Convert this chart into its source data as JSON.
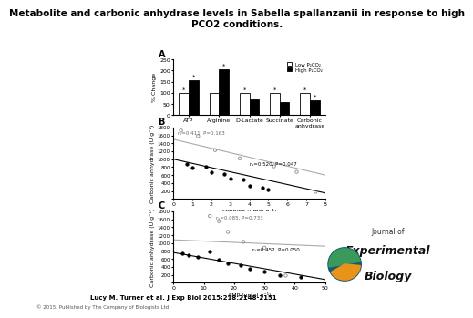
{
  "title": "Metabolite and carbonic anhydrase levels in Sabella spallanzanii in response to high\nPCO2 conditions.",
  "title_fontsize": 7.5,
  "panel_A": {
    "label": "A",
    "categories": [
      "ATP",
      "Arginine",
      "D-Lactate",
      "Succinate",
      "Carbonic\nanhydrase"
    ],
    "low_pco2": [
      100,
      100,
      100,
      100,
      100
    ],
    "high_pco2": [
      155,
      205,
      70,
      60,
      65
    ],
    "ylabel": "% Change",
    "ylim": [
      0,
      250
    ],
    "yticks": [
      0,
      50,
      100,
      150,
      200,
      250
    ],
    "legend_low": "Low P₂CO₂",
    "legend_high": "High P₂CO₂",
    "bar_color_low": "white",
    "bar_color_high": "black",
    "bar_edgecolor": "black",
    "asterisks_low": [
      "*",
      "",
      "*",
      "*",
      "*"
    ],
    "asterisks_high": [
      "*",
      "*",
      "",
      "",
      "*"
    ]
  },
  "panel_B": {
    "label": "B",
    "xlabel": "Arginine (μmol g⁻¹)",
    "ylabel": "Carbonic anhydrase (U g⁻¹)",
    "xlim": [
      0,
      8
    ],
    "ylim": [
      0,
      1800
    ],
    "yticks": [
      0,
      200,
      400,
      600,
      800,
      1000,
      1200,
      1400,
      1600,
      1800
    ],
    "xticks": [
      0,
      1,
      2,
      3,
      4,
      5,
      6,
      7,
      8
    ],
    "annot1": "rₛ=0.411, P=0.163",
    "annot2": "rₛ=0.520, P=0.047",
    "open_x": [
      0.4,
      1.3,
      2.2,
      3.5,
      5.3,
      6.5,
      7.5
    ],
    "open_y": [
      1720,
      1580,
      1230,
      1020,
      820,
      680,
      180
    ],
    "filled_x": [
      0.7,
      1.0,
      1.7,
      2.0,
      2.7,
      3.0,
      3.7,
      4.0,
      4.7,
      5.0
    ],
    "filled_y": [
      880,
      780,
      820,
      680,
      630,
      520,
      480,
      330,
      290,
      240
    ],
    "line1_x": [
      0,
      8
    ],
    "line1_y": [
      1500,
      600
    ],
    "line2_x": [
      0,
      8
    ],
    "line2_y": [
      1000,
      150
    ]
  },
  "panel_C": {
    "label": "C",
    "xlabel": "AMP (μmol g⁻¹)",
    "ylabel": "Carbonic anhydrase (U g⁻¹)",
    "xlim": [
      0,
      50
    ],
    "ylim": [
      0,
      1800
    ],
    "yticks": [
      0,
      200,
      400,
      600,
      800,
      1000,
      1200,
      1400,
      1600,
      1800
    ],
    "xticks": [
      0,
      10,
      20,
      30,
      40,
      50
    ],
    "annot1": "rₛ=0.085, P=0.733",
    "annot2": "rₛ=0.452, P=0.050",
    "open_x": [
      12,
      15,
      18,
      23,
      30,
      37
    ],
    "open_y": [
      1680,
      1550,
      1280,
      1030,
      880,
      180
    ],
    "filled_x": [
      3,
      5,
      8,
      12,
      15,
      18,
      22,
      25,
      30,
      35,
      42
    ],
    "filled_y": [
      740,
      690,
      640,
      790,
      590,
      490,
      440,
      340,
      290,
      190,
      140
    ],
    "line1_x": [
      0,
      50
    ],
    "line1_y": [
      1080,
      920
    ],
    "line2_x": [
      0,
      50
    ],
    "line2_y": [
      760,
      80
    ]
  },
  "citation": "Lucy M. Turner et al. J Exp Biol 2015;218:2148-2151",
  "copyright": "© 2015. Published by The Company of Biologists Ltd",
  "background_color": "#ffffff"
}
